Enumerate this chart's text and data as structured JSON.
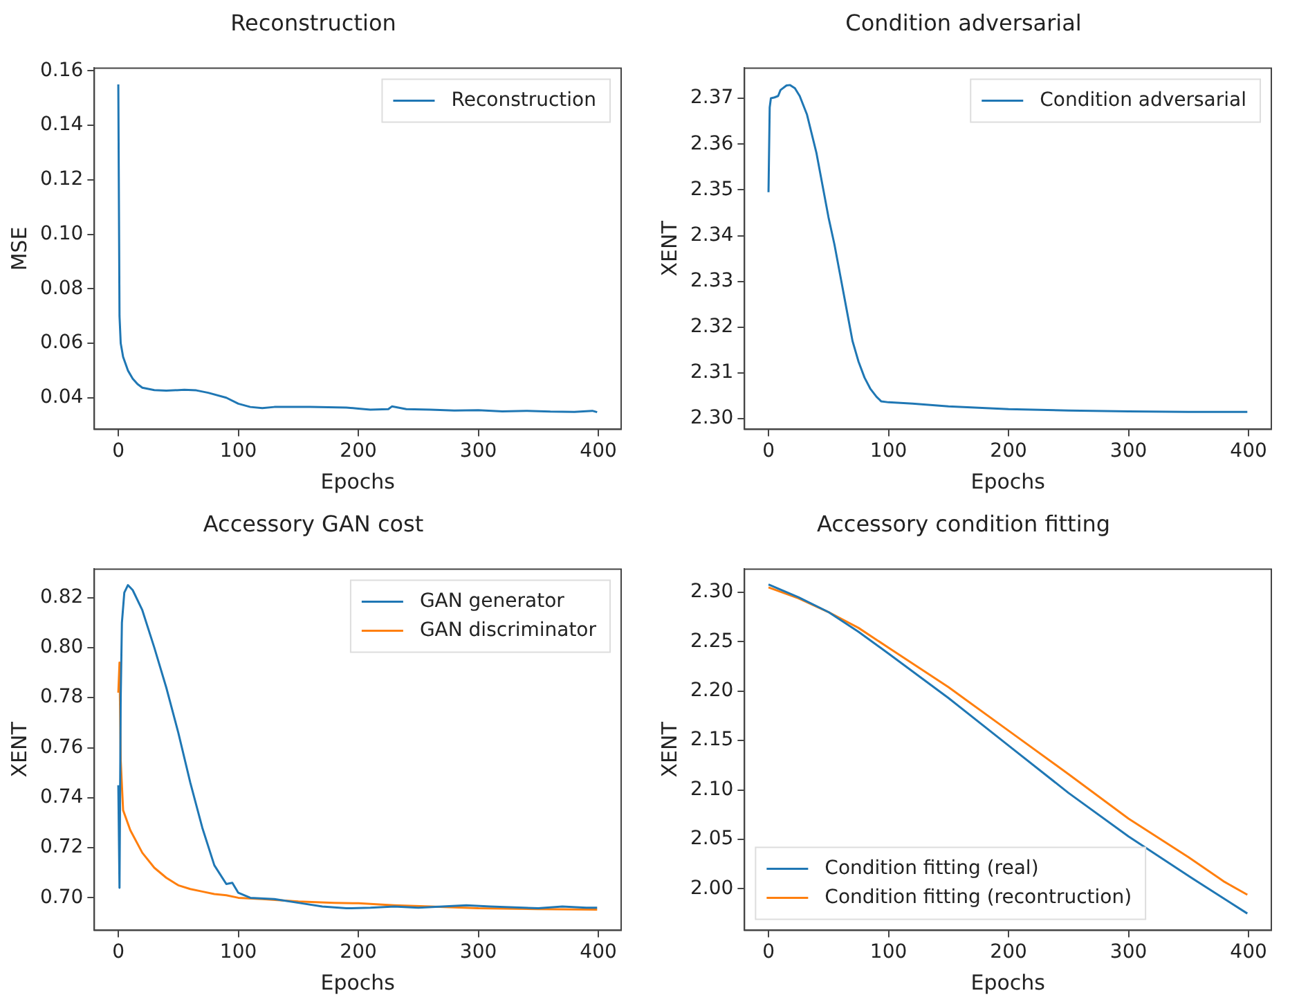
{
  "chart_data": [
    {
      "type": "line",
      "title": "Reconstruction",
      "xlabel": "Epochs",
      "ylabel": "MSE",
      "xlim": [
        -20,
        419
      ],
      "xticks": [
        0,
        100,
        200,
        300,
        400
      ],
      "ylim": [
        0.0284,
        0.161
      ],
      "yticks": [
        0.04,
        0.06,
        0.08,
        {
          "value": 0.1,
          "label": "0.10"
        },
        0.12,
        0.14,
        0.16
      ],
      "grid": false,
      "legend": "top right",
      "series": [
        {
          "name": "Reconstruction",
          "color": "#1f77b4",
          "x": [
            0,
            1,
            2,
            4,
            8,
            12,
            16,
            20,
            30,
            40,
            55,
            65,
            75,
            90,
            100,
            110,
            120,
            130,
            160,
            190,
            200,
            210,
            225,
            228,
            240,
            260,
            280,
            300,
            320,
            340,
            360,
            380,
            395,
            399
          ],
          "values": [
            0.155,
            0.07,
            0.06,
            0.055,
            0.05,
            0.047,
            0.045,
            0.0437,
            0.0428,
            0.0426,
            0.0429,
            0.0427,
            0.0418,
            0.04,
            0.0378,
            0.0366,
            0.0362,
            0.0366,
            0.0366,
            0.0364,
            0.036,
            0.0356,
            0.0358,
            0.0368,
            0.0358,
            0.0356,
            0.0353,
            0.0354,
            0.035,
            0.0352,
            0.0349,
            0.0348,
            0.0352,
            0.0347
          ]
        }
      ]
    },
    {
      "type": "line",
      "title": "Condition adversarial",
      "xlabel": "Epochs",
      "ylabel": "XENT",
      "xlim": [
        -20,
        419
      ],
      "xticks": [
        0,
        100,
        200,
        300,
        400
      ],
      "ylim": [
        2.2977,
        2.3766
      ],
      "yticks": [
        {
          "value": 2.3,
          "label": "2.30"
        },
        2.31,
        2.32,
        2.33,
        2.34,
        2.35,
        2.36,
        2.37
      ],
      "grid": false,
      "legend": "top right",
      "series": [
        {
          "name": "Condition adversarial",
          "color": "#1f77b4",
          "x": [
            0,
            1,
            2,
            5,
            8,
            10,
            15,
            18,
            22,
            26,
            32,
            40,
            45,
            50,
            55,
            60,
            65,
            70,
            75,
            80,
            85,
            90,
            94,
            100,
            120,
            150,
            200,
            250,
            300,
            350,
            399
          ],
          "values": [
            2.3495,
            2.368,
            2.37,
            2.3702,
            2.3705,
            2.3718,
            2.3728,
            2.3729,
            2.3722,
            2.3705,
            2.3665,
            2.358,
            2.351,
            2.344,
            2.338,
            2.331,
            2.324,
            2.317,
            2.3125,
            2.309,
            2.3065,
            2.3048,
            2.3038,
            2.3036,
            2.3033,
            2.3027,
            2.3021,
            2.3018,
            2.3016,
            2.3015,
            2.3015
          ]
        }
      ]
    },
    {
      "type": "line",
      "title": "Accessory GAN cost",
      "xlabel": "Epochs",
      "ylabel": "XENT",
      "xlim": [
        -20,
        419
      ],
      "xticks": [
        0,
        100,
        200,
        300,
        400
      ],
      "ylim": [
        0.687,
        0.8314
      ],
      "yticks": [
        {
          "value": 0.7,
          "label": "0.70"
        },
        0.72,
        0.74,
        0.76,
        0.78,
        {
          "value": 0.8,
          "label": "0.80"
        },
        0.82
      ],
      "grid": false,
      "legend": "top right",
      "series": [
        {
          "name": "GAN generator",
          "color": "#1f77b4",
          "x": [
            0,
            1,
            2,
            3,
            5,
            8,
            12,
            20,
            30,
            40,
            50,
            60,
            70,
            80,
            90,
            95,
            100,
            110,
            130,
            150,
            170,
            190,
            210,
            230,
            250,
            270,
            290,
            310,
            330,
            350,
            370,
            390,
            399
          ],
          "values": [
            0.745,
            0.704,
            0.78,
            0.81,
            0.822,
            0.825,
            0.823,
            0.815,
            0.8,
            0.784,
            0.766,
            0.746,
            0.728,
            0.713,
            0.7055,
            0.706,
            0.702,
            0.7,
            0.6995,
            0.698,
            0.6965,
            0.6958,
            0.696,
            0.6965,
            0.696,
            0.6965,
            0.697,
            0.6965,
            0.6962,
            0.6958,
            0.6965,
            0.696,
            0.696
          ]
        },
        {
          "name": "GAN discriminator",
          "color": "#ff7f0e",
          "x": [
            0,
            1,
            2,
            4,
            10,
            20,
            30,
            40,
            50,
            60,
            70,
            80,
            90,
            100,
            120,
            150,
            180,
            200,
            230,
            260,
            300,
            350,
            399
          ],
          "values": [
            0.782,
            0.794,
            0.755,
            0.735,
            0.727,
            0.718,
            0.712,
            0.708,
            0.705,
            0.7035,
            0.7025,
            0.7015,
            0.701,
            0.7,
            0.6995,
            0.6985,
            0.698,
            0.6978,
            0.697,
            0.6965,
            0.6958,
            0.6955,
            0.6953
          ]
        }
      ]
    },
    {
      "type": "line",
      "title": "Accessory condition fitting",
      "xlabel": "Epochs",
      "ylabel": "XENT",
      "xlim": [
        -20,
        419
      ],
      "xticks": [
        0,
        100,
        200,
        300,
        400
      ],
      "ylim": [
        1.958,
        2.3235
      ],
      "yticks": [
        {
          "value": 2,
          "label": "2.00"
        },
        2.05,
        {
          "value": 2.1,
          "label": "2.10"
        },
        2.15,
        {
          "value": 2.2,
          "label": "2.20"
        },
        2.25,
        {
          "value": 2.3,
          "label": "2.30"
        }
      ],
      "grid": false,
      "legend": "bottom left",
      "series": [
        {
          "name": "Condition fitting (real)",
          "color": "#1f77b4",
          "x": [
            0,
            25,
            50,
            75,
            100,
            150,
            200,
            250,
            300,
            350,
            399
          ],
          "values": [
            2.308,
            2.295,
            2.28,
            2.26,
            2.238,
            2.193,
            2.145,
            2.097,
            2.053,
            2.013,
            1.975
          ]
        },
        {
          "name": "Condition fitting (recontruction)",
          "color": "#ff7f0e",
          "x": [
            0,
            25,
            50,
            75,
            100,
            150,
            200,
            250,
            300,
            350,
            380,
            399
          ],
          "values": [
            2.305,
            2.294,
            2.28,
            2.264,
            2.244,
            2.204,
            2.16,
            2.116,
            2.071,
            2.032,
            2.007,
            1.994
          ]
        }
      ]
    }
  ]
}
